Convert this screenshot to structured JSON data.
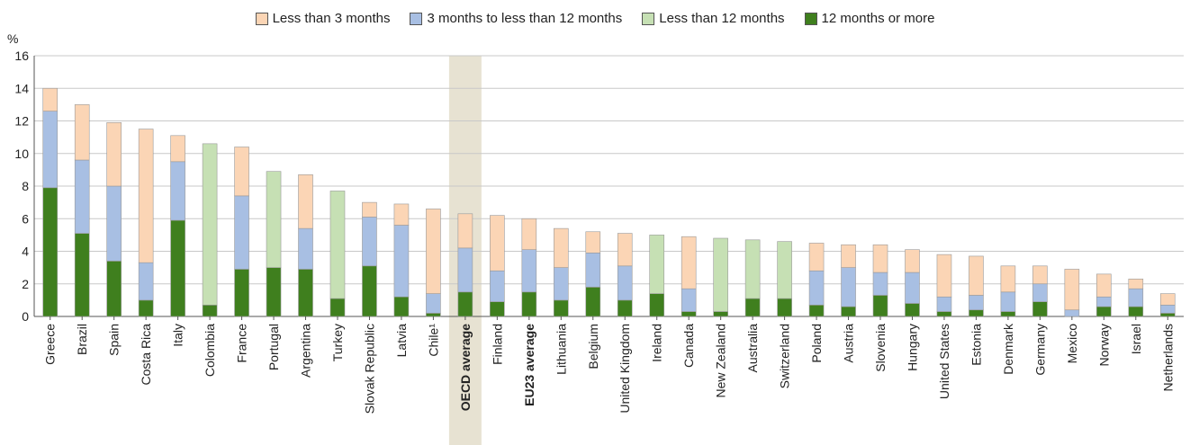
{
  "chart_data": {
    "type": "bar",
    "stacked": true,
    "y_unit": "%",
    "ylim": [
      0,
      16
    ],
    "yticks": [
      0,
      2,
      4,
      6,
      8,
      10,
      12,
      14,
      16
    ],
    "grid": true,
    "legend_position": "top",
    "highlight_category": "OECD average",
    "bold_categories": [
      "OECD average",
      "EU23 average"
    ],
    "categories": [
      "Greece",
      "Brazil",
      "Spain",
      "Costa Rica",
      "Italy",
      "Colombia",
      "France",
      "Portugal",
      "Argentina",
      "Turkey",
      "Slovak Republic",
      "Latvia",
      "Chile¹",
      "OECD average",
      "Finland",
      "EU23 average",
      "Lithuania",
      "Belgium",
      "United Kingdom",
      "Ireland",
      "Canada",
      "New Zealand",
      "Australia",
      "Switzerland",
      "Poland",
      "Austria",
      "Slovenia",
      "Hungary",
      "United States",
      "Estonia",
      "Denmark",
      "Germany",
      "Mexico",
      "Norway",
      "Israel",
      "Netherlands"
    ],
    "series": [
      {
        "name": "12 months or more",
        "color": "#3f7f1e",
        "values": [
          7.9,
          5.1,
          3.4,
          1.0,
          5.9,
          0.7,
          2.9,
          3.0,
          2.9,
          1.1,
          3.1,
          1.2,
          0.2,
          1.5,
          0.9,
          1.5,
          1.0,
          1.8,
          1.0,
          1.4,
          0.3,
          0.3,
          1.1,
          1.1,
          0.7,
          0.6,
          1.3,
          0.8,
          0.3,
          0.4,
          0.3,
          0.9,
          0.0,
          0.6,
          0.6,
          0.2
        ]
      },
      {
        "name": "3 months to less than 12 months",
        "color": "#a8bfe3",
        "values": [
          4.7,
          4.5,
          4.6,
          2.3,
          3.6,
          0,
          4.5,
          0,
          2.5,
          0,
          3.0,
          4.4,
          1.2,
          2.7,
          1.9,
          2.6,
          2.0,
          2.1,
          2.1,
          0,
          1.4,
          0,
          0,
          0,
          2.1,
          2.4,
          1.4,
          1.9,
          0.9,
          0.9,
          1.2,
          1.1,
          0.4,
          0.6,
          1.1,
          0.5
        ]
      },
      {
        "name": "Less than 3 months",
        "color": "#fbd5b5",
        "values": [
          1.4,
          3.4,
          3.9,
          8.2,
          1.6,
          0,
          3.0,
          0,
          3.3,
          0,
          0.9,
          1.3,
          5.2,
          2.1,
          3.4,
          1.9,
          2.4,
          1.3,
          2.0,
          0,
          3.2,
          0,
          0,
          0,
          1.7,
          1.4,
          1.7,
          1.4,
          2.6,
          2.4,
          1.6,
          1.1,
          2.5,
          1.4,
          0.6,
          0.7
        ]
      },
      {
        "name": "Less than 12 months",
        "color": "#c6e0b4",
        "values": [
          0,
          0,
          0,
          0,
          0,
          9.9,
          0,
          5.9,
          0,
          6.6,
          0,
          0,
          0,
          0,
          0,
          0,
          0,
          0,
          0,
          3.6,
          0,
          4.5,
          3.6,
          3.5,
          0,
          0,
          0,
          0,
          0,
          0,
          0,
          0,
          0,
          0,
          0,
          0
        ]
      }
    ]
  },
  "legend": [
    {
      "label": "Less than 3 months",
      "color": "#fbd5b5"
    },
    {
      "label": "3 months to less than 12 months",
      "color": "#a8bfe3"
    },
    {
      "label": "Less than 12 months",
      "color": "#c6e0b4"
    },
    {
      "label": "12 months or more",
      "color": "#3f7f1e"
    }
  ]
}
